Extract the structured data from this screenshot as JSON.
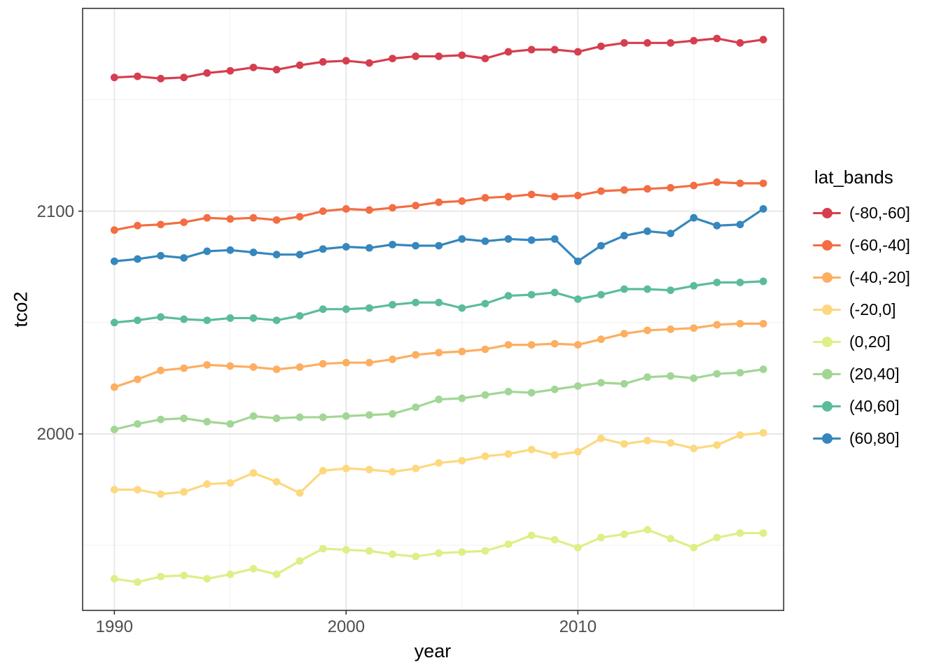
{
  "chart_data": {
    "type": "line",
    "title": "",
    "xlabel": "year",
    "ylabel": "tco2",
    "legend_title": "lat_bands",
    "legend_position": "right",
    "grid": true,
    "xlim": [
      1988.63,
      2018.88
    ],
    "ylim": [
      1920.8,
      2191.0
    ],
    "x_ticks": {
      "major": [
        1990,
        2000,
        2010
      ],
      "minor": [
        1995,
        2005,
        2015
      ],
      "labels": [
        "1990",
        "2000",
        "2010"
      ]
    },
    "y_ticks": {
      "major": [
        2000,
        2100
      ],
      "minor": [
        1950,
        2050,
        2150
      ],
      "labels": [
        "2000",
        "2100"
      ]
    },
    "x": [
      1990,
      1991,
      1992,
      1993,
      1994,
      1995,
      1996,
      1997,
      1998,
      1999,
      2000,
      2001,
      2002,
      2003,
      2004,
      2005,
      2006,
      2007,
      2008,
      2009,
      2010,
      2011,
      2012,
      2013,
      2014,
      2015,
      2016,
      2017,
      2018
    ],
    "series": [
      {
        "name": "(-80,-60]",
        "color": "#d53e4f",
        "values": [
          2160,
          2160.5,
          2159.5,
          2160,
          2162,
          2163,
          2164.5,
          2163.5,
          2165.5,
          2167,
          2167.5,
          2166.5,
          2168.5,
          2169.5,
          2169.5,
          2170,
          2168.5,
          2171.5,
          2172.5,
          2172.5,
          2171.5,
          2174,
          2175.5,
          2175.5,
          2175.5,
          2176.5,
          2177.5,
          2175.5,
          2177
        ]
      },
      {
        "name": "(-60,-40]",
        "color": "#f46d43",
        "values": [
          2091.5,
          2093.5,
          2094,
          2095,
          2097,
          2096.5,
          2097,
          2096,
          2097.5,
          2100,
          2101,
          2100.5,
          2101.5,
          2102.5,
          2104,
          2104.5,
          2106,
          2106.5,
          2107.5,
          2106.5,
          2107,
          2109,
          2109.5,
          2110,
          2110.5,
          2111.5,
          2113,
          2112.5,
          2112.5
        ]
      },
      {
        "name": "(-40,-20]",
        "color": "#fdae61",
        "values": [
          2021,
          2024.5,
          2028.5,
          2029.5,
          2031,
          2030.5,
          2030,
          2029,
          2030,
          2031.5,
          2032,
          2032,
          2033.5,
          2035.5,
          2036.5,
          2037,
          2038,
          2040,
          2040,
          2040.5,
          2040,
          2042.5,
          2045,
          2046.5,
          2047,
          2047.5,
          2049,
          2049.5,
          2049.5
        ]
      },
      {
        "name": "(-20,0]",
        "color": "#fcd97f",
        "values": [
          1975,
          1975,
          1973,
          1974,
          1977.5,
          1978,
          1982.5,
          1978.5,
          1973.5,
          1983.5,
          1984.5,
          1984,
          1983,
          1984.5,
          1987,
          1988,
          1990,
          1991,
          1993,
          1990.5,
          1992,
          1998,
          1995.5,
          1997,
          1996,
          1993.5,
          1995,
          1999.5,
          2000.5
        ]
      },
      {
        "name": "(0,20]",
        "color": "#dfee87",
        "values": [
          1935,
          1933.5,
          1936,
          1936.5,
          1935,
          1937,
          1939.5,
          1937,
          1943,
          1948.5,
          1948,
          1947.5,
          1946,
          1945,
          1946.5,
          1947,
          1947.5,
          1950.5,
          1954.5,
          1952.5,
          1949,
          1953.5,
          1955,
          1957,
          1953,
          1949,
          1953.5,
          1955.5,
          1955.5
        ]
      },
      {
        "name": "(20,40]",
        "color": "#a2d695",
        "values": [
          2002,
          2004.5,
          2006.5,
          2007,
          2005.5,
          2004.5,
          2008,
          2007,
          2007.5,
          2007.5,
          2008,
          2008.5,
          2009,
          2012,
          2015.5,
          2016,
          2017.5,
          2019,
          2018.5,
          2020,
          2021.5,
          2023,
          2022.5,
          2025.5,
          2026,
          2025,
          2027,
          2027.5,
          2029
        ]
      },
      {
        "name": "(40,60]",
        "color": "#5bbc9d",
        "values": [
          2050,
          2051,
          2052.5,
          2051.5,
          2051,
          2052,
          2052,
          2051,
          2053,
          2056,
          2056,
          2056.5,
          2058,
          2059,
          2059,
          2056.5,
          2058.5,
          2062,
          2062.5,
          2063.5,
          2060.5,
          2062.5,
          2065,
          2065,
          2064.5,
          2066.5,
          2068,
          2068,
          2068.5
        ]
      },
      {
        "name": "(60,80]",
        "color": "#3587bd",
        "values": [
          2077.5,
          2078.5,
          2080,
          2079,
          2082,
          2082.5,
          2081.5,
          2080.5,
          2080.5,
          2083,
          2084,
          2083.5,
          2085,
          2084.5,
          2084.5,
          2087.5,
          2086.5,
          2087.5,
          2087,
          2087.5,
          2077.5,
          2084.5,
          2089,
          2091,
          2090,
          2097,
          2093.5,
          2094,
          2101
        ]
      }
    ],
    "style": {
      "panel_border": "#333333",
      "grid_major": "#e6e6e6",
      "grid_minor": "#f0f0f0",
      "tick_label_color": "#4d4d4d"
    }
  }
}
